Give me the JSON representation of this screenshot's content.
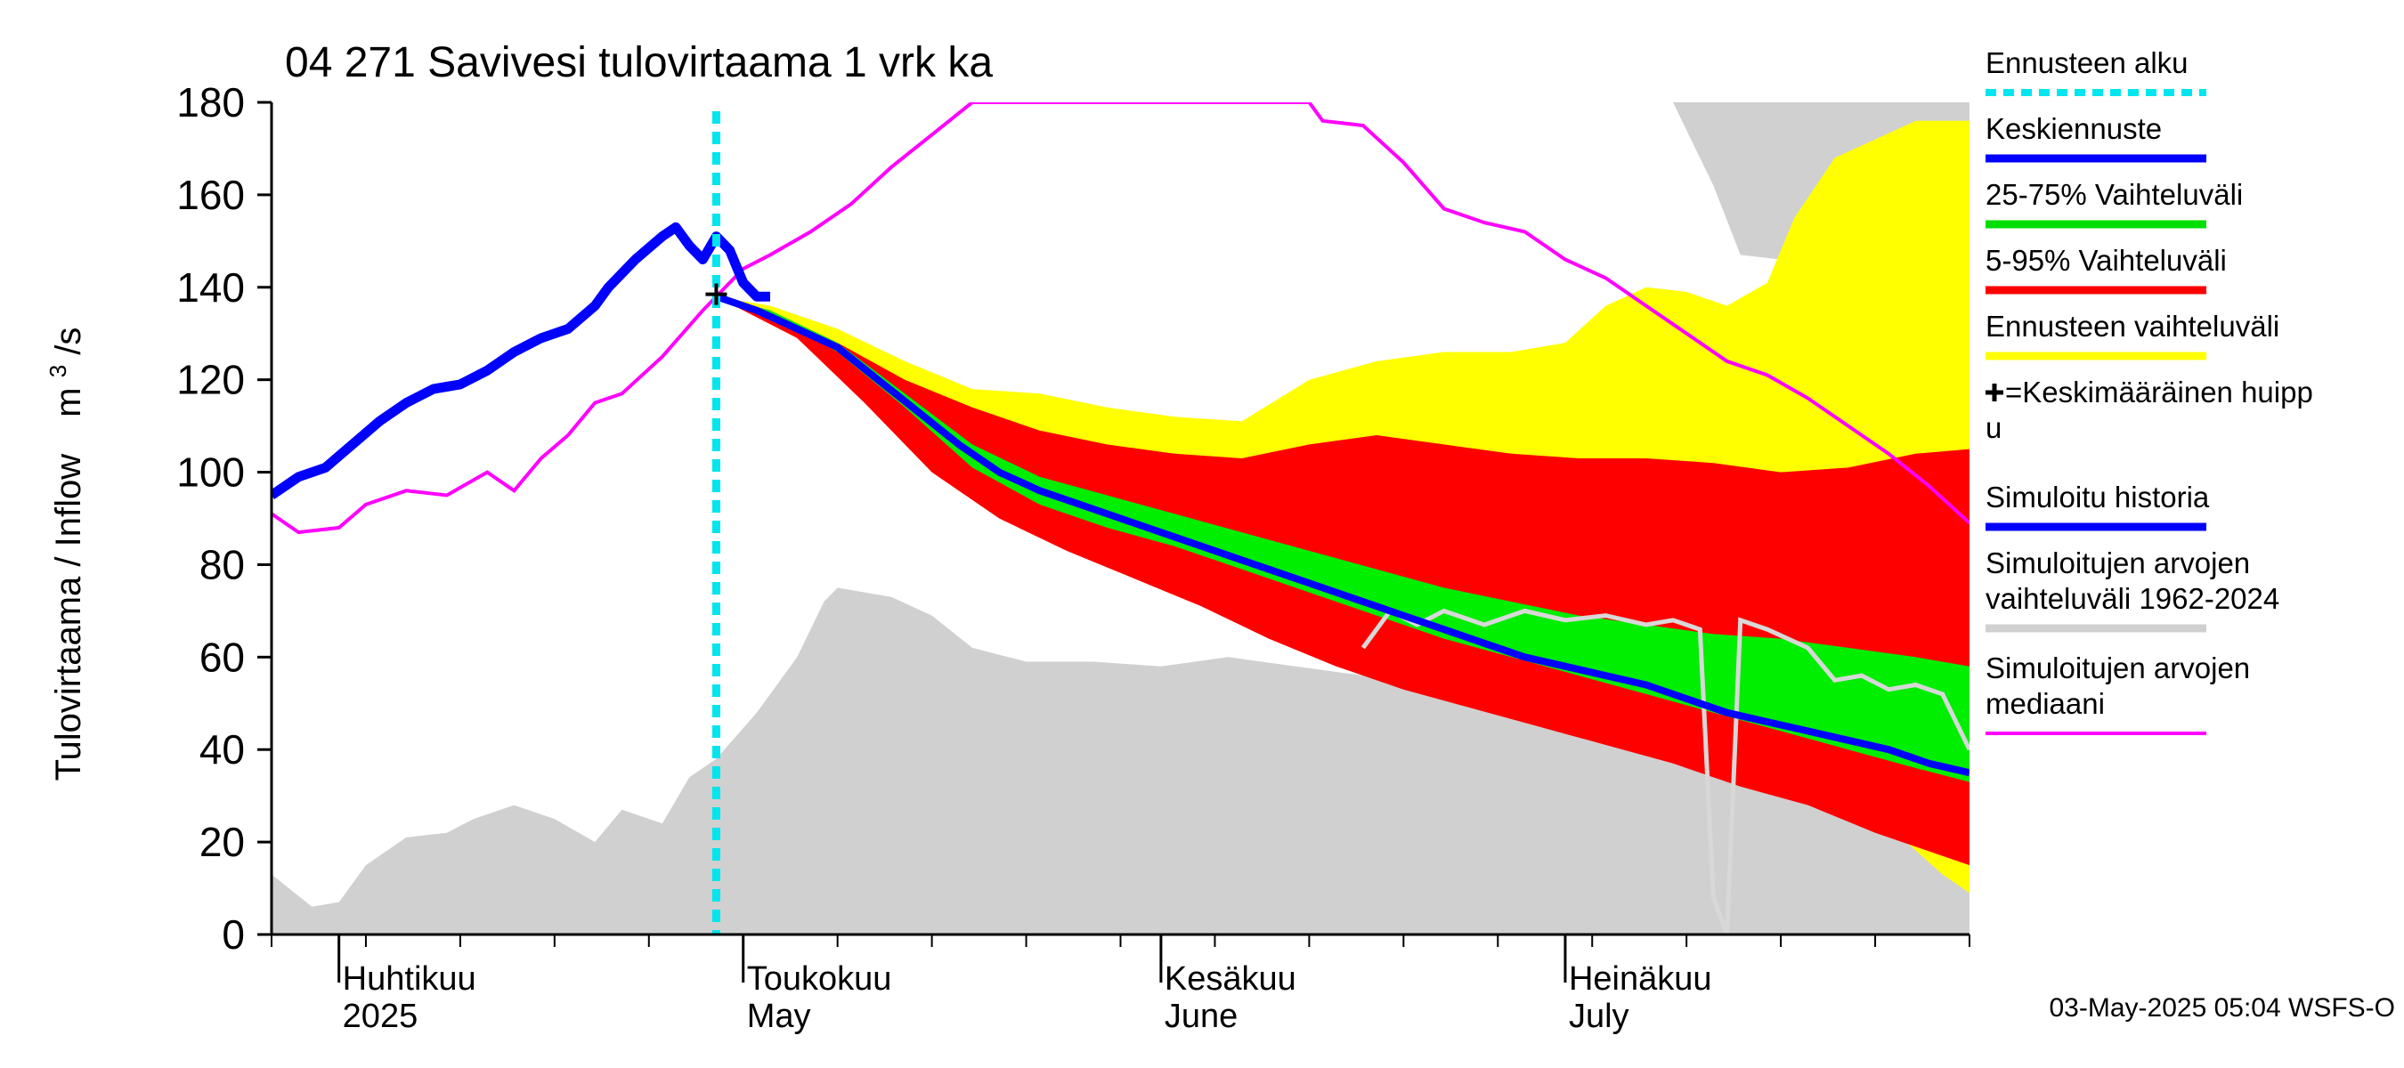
{
  "chart_data": {
    "type": "area",
    "title": "04 271 Savivesi tulovirtaama 1 vrk ka",
    "ylabel": "Tulovirtaama / Inflow",
    "yunit_base": "m",
    "yunit_sup": "3",
    "yunit_tail": "/s",
    "ylim": [
      0,
      180
    ],
    "yticks": [
      0,
      20,
      40,
      60,
      80,
      100,
      120,
      140,
      160,
      180
    ],
    "xlim": [
      "2025-03-27",
      "2025-07-31"
    ],
    "months": [
      {
        "line1": "Huhtikuu",
        "line2": "2025",
        "start": "2025-04-01"
      },
      {
        "line1": "Toukokuu",
        "line2": "May",
        "start": "2025-05-01"
      },
      {
        "line1": "Kesäkuu",
        "line2": "June",
        "start": "2025-06-01"
      },
      {
        "line1": "Heinäkuu",
        "line2": "July",
        "start": "2025-07-01"
      }
    ],
    "forecast_start": "2025-04-29",
    "mean_peak": {
      "date": "2025-04-29",
      "value": 138.5
    },
    "footer": "03-May-2025 05:04 WSFS-O",
    "legend": [
      {
        "label": "Ennusteen alku",
        "color": "#00e5ee",
        "style": "dotted"
      },
      {
        "label": "Keskiennuste",
        "color": "#0000ff",
        "style": "solid"
      },
      {
        "label": "25-75% Vaihteluväli",
        "color": "#00dd00",
        "style": "solid"
      },
      {
        "label": "5-95% Vaihteluväli",
        "color": "#ff0000",
        "style": "solid"
      },
      {
        "label": "Ennusteen vaihteluväli",
        "color": "#ffff00",
        "style": "solid"
      },
      {
        "label": "=Keskimääräinen huipp",
        "label2": "u",
        "color": "#000000",
        "style": "cross"
      },
      {
        "label": "Simuloitu historia",
        "color": "#0000ff",
        "style": "solid"
      },
      {
        "label": "Simuloitujen arvojen",
        "label2": "vaihteluväli 1962-2024",
        "color": "#d0d0d0",
        "style": "solid"
      },
      {
        "label": "Simuloitujen arvojen",
        "label2": "mediaani",
        "color": "#ff00ff",
        "style": "solid"
      }
    ],
    "colors": {
      "hist_range": "#d0d0d0",
      "fc_range": "#ffff00",
      "p5_95": "#ff0000",
      "p25_75": "#00ee00",
      "mean": "#0000ff",
      "history": "#0000ff",
      "median": "#ff00ff",
      "start_line": "#00e5ee",
      "prev_sim": "#d8d8d8"
    },
    "series": {
      "hist_range_max": [
        [
          "2025-03-27",
          180
        ],
        [
          "2025-05-19",
          180
        ],
        [
          "2025-06-19",
          180
        ],
        [
          "2025-07-09",
          180
        ],
        [
          "2025-07-12",
          162
        ],
        [
          "2025-07-14",
          147
        ],
        [
          "2025-07-17",
          146
        ],
        [
          "2025-07-19",
          145
        ],
        [
          "2025-07-21",
          140
        ],
        [
          "2025-07-23",
          152
        ],
        [
          "2025-07-25",
          168
        ],
        [
          "2025-07-28",
          173
        ],
        [
          "2025-07-31",
          175
        ]
      ],
      "hist_range_min": [
        [
          "2025-03-27",
          13
        ],
        [
          "2025-03-30",
          6
        ],
        [
          "2025-04-01",
          7
        ],
        [
          "2025-04-03",
          15
        ],
        [
          "2025-04-06",
          21
        ],
        [
          "2025-04-09",
          22
        ],
        [
          "2025-04-11",
          25
        ],
        [
          "2025-04-14",
          28
        ],
        [
          "2025-04-17",
          25
        ],
        [
          "2025-04-20",
          20
        ],
        [
          "2025-04-22",
          27
        ],
        [
          "2025-04-25",
          24
        ],
        [
          "2025-04-27",
          34
        ],
        [
          "2025-04-29",
          38
        ],
        [
          "2025-05-02",
          48
        ],
        [
          "2025-05-05",
          60
        ],
        [
          "2025-05-07",
          72
        ],
        [
          "2025-05-08",
          75
        ],
        [
          "2025-05-12",
          73
        ],
        [
          "2025-05-15",
          69
        ],
        [
          "2025-05-18",
          62
        ],
        [
          "2025-05-22",
          59
        ],
        [
          "2025-05-27",
          59
        ],
        [
          "2025-06-01",
          58
        ],
        [
          "2025-06-06",
          60
        ],
        [
          "2025-06-11",
          58
        ],
        [
          "2025-06-16",
          56
        ],
        [
          "2025-06-21",
          58
        ],
        [
          "2025-06-26",
          60
        ],
        [
          "2025-07-01",
          58
        ],
        [
          "2025-07-06",
          58
        ],
        [
          "2025-07-11",
          59
        ],
        [
          "2025-07-16",
          60
        ],
        [
          "2025-07-21",
          59
        ],
        [
          "2025-07-26",
          58
        ],
        [
          "2025-07-31",
          56
        ]
      ],
      "fc_range_upper": [
        [
          "2025-04-29",
          138
        ],
        [
          "2025-05-03",
          136
        ],
        [
          "2025-05-08",
          131
        ],
        [
          "2025-05-13",
          124
        ],
        [
          "2025-05-18",
          118
        ],
        [
          "2025-05-23",
          117
        ],
        [
          "2025-05-28",
          114
        ],
        [
          "2025-06-02",
          112
        ],
        [
          "2025-06-07",
          111
        ],
        [
          "2025-06-12",
          120
        ],
        [
          "2025-06-17",
          124
        ],
        [
          "2025-06-22",
          126
        ],
        [
          "2025-06-27",
          126
        ],
        [
          "2025-07-01",
          128
        ],
        [
          "2025-07-04",
          136
        ],
        [
          "2025-07-07",
          140
        ],
        [
          "2025-07-10",
          139
        ],
        [
          "2025-07-13",
          136
        ],
        [
          "2025-07-16",
          141
        ],
        [
          "2025-07-18",
          155
        ],
        [
          "2025-07-21",
          168
        ],
        [
          "2025-07-24",
          172
        ],
        [
          "2025-07-27",
          176
        ],
        [
          "2025-07-31",
          176
        ]
      ],
      "fc_range_lower": [
        [
          "2025-04-29",
          138
        ],
        [
          "2025-05-05",
          130
        ],
        [
          "2025-05-10",
          117
        ],
        [
          "2025-05-15",
          103
        ],
        [
          "2025-05-20",
          91
        ],
        [
          "2025-05-25",
          84
        ],
        [
          "2025-05-30",
          78
        ],
        [
          "2025-06-04",
          72
        ],
        [
          "2025-06-09",
          66
        ],
        [
          "2025-06-14",
          60
        ],
        [
          "2025-06-19",
          55
        ],
        [
          "2025-06-24",
          51
        ],
        [
          "2025-06-29",
          47
        ],
        [
          "2025-07-04",
          43
        ],
        [
          "2025-07-09",
          39
        ],
        [
          "2025-07-14",
          34
        ],
        [
          "2025-07-19",
          30
        ],
        [
          "2025-07-24",
          26
        ],
        [
          "2025-07-29",
          13
        ],
        [
          "2025-07-31",
          9
        ]
      ],
      "p95": [
        [
          "2025-04-29",
          138
        ],
        [
          "2025-05-03",
          135
        ],
        [
          "2025-05-08",
          128
        ],
        [
          "2025-05-13",
          120
        ],
        [
          "2025-05-18",
          114
        ],
        [
          "2025-05-23",
          109
        ],
        [
          "2025-05-28",
          106
        ],
        [
          "2025-06-02",
          104
        ],
        [
          "2025-06-07",
          103
        ],
        [
          "2025-06-12",
          106
        ],
        [
          "2025-06-17",
          108
        ],
        [
          "2025-06-22",
          106
        ],
        [
          "2025-06-27",
          104
        ],
        [
          "2025-07-02",
          103
        ],
        [
          "2025-07-07",
          103
        ],
        [
          "2025-07-12",
          102
        ],
        [
          "2025-07-17",
          100
        ],
        [
          "2025-07-22",
          101
        ],
        [
          "2025-07-27",
          104
        ],
        [
          "2025-07-31",
          105
        ]
      ],
      "p5": [
        [
          "2025-04-29",
          138
        ],
        [
          "2025-05-05",
          129
        ],
        [
          "2025-05-10",
          115
        ],
        [
          "2025-05-15",
          100
        ],
        [
          "2025-05-20",
          90
        ],
        [
          "2025-05-25",
          83
        ],
        [
          "2025-05-30",
          77
        ],
        [
          "2025-06-04",
          71
        ],
        [
          "2025-06-09",
          64
        ],
        [
          "2025-06-14",
          58
        ],
        [
          "2025-06-19",
          53
        ],
        [
          "2025-06-24",
          49
        ],
        [
          "2025-06-29",
          45
        ],
        [
          "2025-07-04",
          41
        ],
        [
          "2025-07-09",
          37
        ],
        [
          "2025-07-14",
          32
        ],
        [
          "2025-07-19",
          28
        ],
        [
          "2025-07-24",
          22
        ],
        [
          "2025-07-29",
          17
        ],
        [
          "2025-07-31",
          15
        ]
      ],
      "p75": [
        [
          "2025-04-29",
          138
        ],
        [
          "2025-05-03",
          135
        ],
        [
          "2025-05-08",
          128
        ],
        [
          "2025-05-13",
          117
        ],
        [
          "2025-05-18",
          106
        ],
        [
          "2025-05-23",
          99
        ],
        [
          "2025-05-28",
          95
        ],
        [
          "2025-06-02",
          91
        ],
        [
          "2025-06-07",
          87
        ],
        [
          "2025-06-12",
          83
        ],
        [
          "2025-06-17",
          79
        ],
        [
          "2025-06-22",
          75
        ],
        [
          "2025-06-27",
          72
        ],
        [
          "2025-07-02",
          69
        ],
        [
          "2025-07-07",
          67
        ],
        [
          "2025-07-12",
          65
        ],
        [
          "2025-07-17",
          64
        ],
        [
          "2025-07-22",
          62
        ],
        [
          "2025-07-27",
          60
        ],
        [
          "2025-07-31",
          58
        ]
      ],
      "p25": [
        [
          "2025-04-29",
          138
        ],
        [
          "2025-05-03",
          134
        ],
        [
          "2025-05-08",
          126
        ],
        [
          "2025-05-13",
          114
        ],
        [
          "2025-05-18",
          101
        ],
        [
          "2025-05-23",
          93
        ],
        [
          "2025-05-28",
          88
        ],
        [
          "2025-06-02",
          84
        ],
        [
          "2025-06-07",
          79
        ],
        [
          "2025-06-12",
          74
        ],
        [
          "2025-06-17",
          69
        ],
        [
          "2025-06-22",
          64
        ],
        [
          "2025-06-27",
          60
        ],
        [
          "2025-07-02",
          56
        ],
        [
          "2025-07-07",
          52
        ],
        [
          "2025-07-12",
          48
        ],
        [
          "2025-07-17",
          44
        ],
        [
          "2025-07-22",
          40
        ],
        [
          "2025-07-27",
          36
        ],
        [
          "2025-07-31",
          33
        ]
      ],
      "mean_forecast": [
        [
          "2025-04-29",
          138
        ],
        [
          "2025-05-02",
          135
        ],
        [
          "2025-05-05",
          131
        ],
        [
          "2025-05-08",
          127
        ],
        [
          "2025-05-11",
          120
        ],
        [
          "2025-05-14",
          113
        ],
        [
          "2025-05-17",
          106
        ],
        [
          "2025-05-20",
          100
        ],
        [
          "2025-05-23",
          96
        ],
        [
          "2025-05-26",
          93
        ],
        [
          "2025-05-29",
          90
        ],
        [
          "2025-06-01",
          87
        ],
        [
          "2025-06-04",
          84
        ],
        [
          "2025-06-07",
          81
        ],
        [
          "2025-06-10",
          78
        ],
        [
          "2025-06-13",
          75
        ],
        [
          "2025-06-16",
          72
        ],
        [
          "2025-06-19",
          69
        ],
        [
          "2025-06-22",
          66
        ],
        [
          "2025-06-25",
          63
        ],
        [
          "2025-06-28",
          60
        ],
        [
          "2025-07-01",
          58
        ],
        [
          "2025-07-04",
          56
        ],
        [
          "2025-07-07",
          54
        ],
        [
          "2025-07-10",
          51
        ],
        [
          "2025-07-13",
          48
        ],
        [
          "2025-07-16",
          46
        ],
        [
          "2025-07-19",
          44
        ],
        [
          "2025-07-22",
          42
        ],
        [
          "2025-07-25",
          40
        ],
        [
          "2025-07-28",
          37
        ],
        [
          "2025-07-31",
          35
        ]
      ],
      "history": [
        [
          "2025-03-27",
          95
        ],
        [
          "2025-03-29",
          99
        ],
        [
          "2025-03-31",
          101
        ],
        [
          "2025-04-02",
          106
        ],
        [
          "2025-04-04",
          111
        ],
        [
          "2025-04-06",
          115
        ],
        [
          "2025-04-08",
          118
        ],
        [
          "2025-04-10",
          119
        ],
        [
          "2025-04-12",
          122
        ],
        [
          "2025-04-14",
          126
        ],
        [
          "2025-04-16",
          129
        ],
        [
          "2025-04-18",
          131
        ],
        [
          "2025-04-20",
          136
        ],
        [
          "2025-04-21",
          140
        ],
        [
          "2025-04-23",
          146
        ],
        [
          "2025-04-25",
          151
        ],
        [
          "2025-04-26",
          153
        ],
        [
          "2025-04-27",
          149
        ],
        [
          "2025-04-28",
          146
        ],
        [
          "2025-04-29",
          151
        ],
        [
          "2025-04-30",
          148
        ],
        [
          "2025-05-01",
          141
        ],
        [
          "2025-05-02",
          138
        ],
        [
          "2025-05-03",
          138
        ]
      ],
      "median": [
        [
          "2025-03-27",
          91
        ],
        [
          "2025-03-29",
          87
        ],
        [
          "2025-04-01",
          88
        ],
        [
          "2025-04-03",
          93
        ],
        [
          "2025-04-06",
          96
        ],
        [
          "2025-04-09",
          95
        ],
        [
          "2025-04-12",
          100
        ],
        [
          "2025-04-14",
          96
        ],
        [
          "2025-04-16",
          103
        ],
        [
          "2025-04-18",
          108
        ],
        [
          "2025-04-20",
          115
        ],
        [
          "2025-04-22",
          117
        ],
        [
          "2025-04-25",
          125
        ],
        [
          "2025-04-28",
          135
        ],
        [
          "2025-05-01",
          144
        ],
        [
          "2025-05-03",
          147
        ],
        [
          "2025-05-06",
          152
        ],
        [
          "2025-05-09",
          158
        ],
        [
          "2025-05-12",
          166
        ],
        [
          "2025-05-15",
          173
        ],
        [
          "2025-05-18",
          180
        ],
        [
          "2025-06-12",
          180
        ],
        [
          "2025-06-13",
          176
        ],
        [
          "2025-06-16",
          175
        ],
        [
          "2025-06-19",
          167
        ],
        [
          "2025-06-22",
          157
        ],
        [
          "2025-06-25",
          154
        ],
        [
          "2025-06-28",
          152
        ],
        [
          "2025-07-01",
          146
        ],
        [
          "2025-07-04",
          142
        ],
        [
          "2025-07-07",
          136
        ],
        [
          "2025-07-10",
          130
        ],
        [
          "2025-07-13",
          124
        ],
        [
          "2025-07-16",
          121
        ],
        [
          "2025-07-19",
          116
        ],
        [
          "2025-07-22",
          110
        ],
        [
          "2025-07-25",
          104
        ],
        [
          "2025-07-28",
          97
        ],
        [
          "2025-07-31",
          89
        ]
      ],
      "prev_sim": [
        [
          "2025-06-16",
          62
        ],
        [
          "2025-06-18",
          70
        ],
        [
          "2025-06-20",
          67
        ],
        [
          "2025-06-22",
          70
        ],
        [
          "2025-06-25",
          67
        ],
        [
          "2025-06-28",
          70
        ],
        [
          "2025-07-01",
          68
        ],
        [
          "2025-07-04",
          69
        ],
        [
          "2025-07-07",
          67
        ],
        [
          "2025-07-09",
          68
        ],
        [
          "2025-07-11",
          66
        ],
        [
          "2025-07-12",
          8
        ],
        [
          "2025-07-13",
          0
        ],
        [
          "2025-07-14",
          68
        ],
        [
          "2025-07-16",
          66
        ],
        [
          "2025-07-19",
          62
        ],
        [
          "2025-07-21",
          55
        ],
        [
          "2025-07-23",
          56
        ],
        [
          "2025-07-25",
          53
        ],
        [
          "2025-07-27",
          54
        ],
        [
          "2025-07-29",
          52
        ],
        [
          "2025-07-31",
          40
        ]
      ]
    }
  }
}
